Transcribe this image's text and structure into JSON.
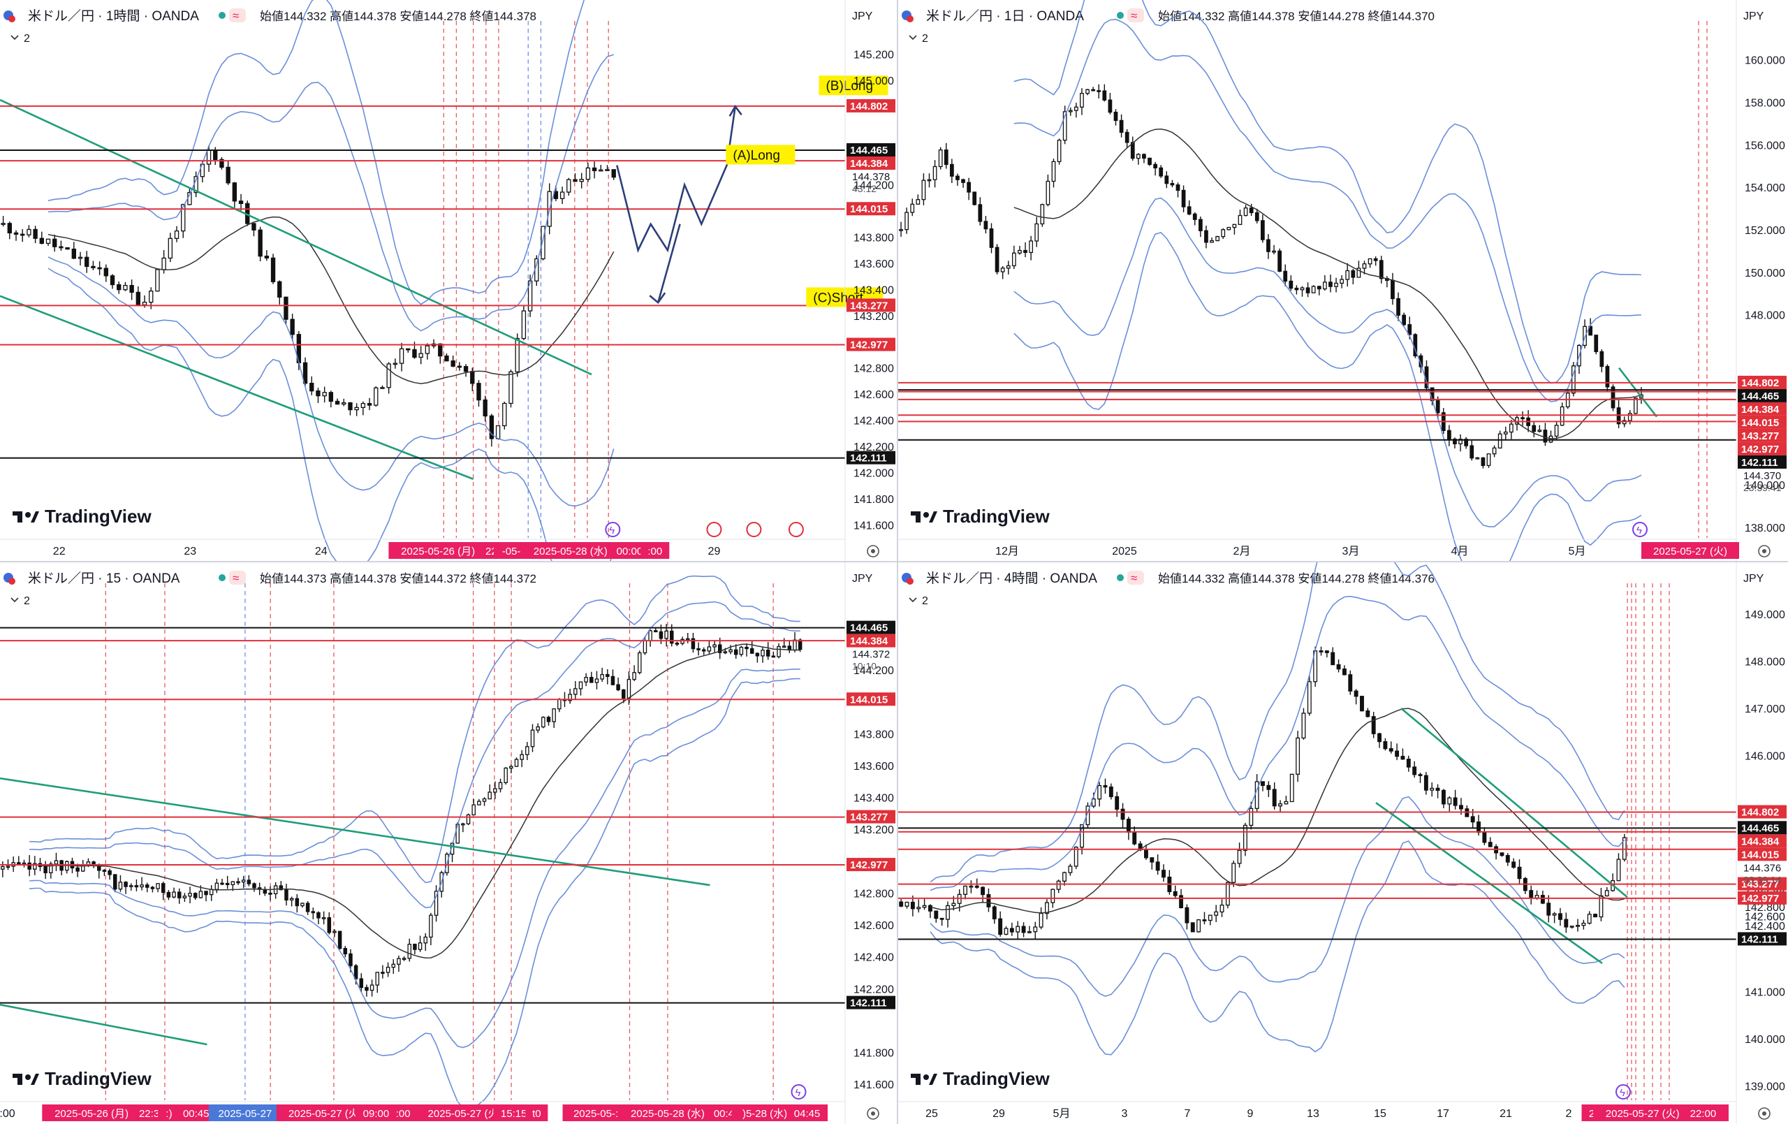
{
  "colors": {
    "red": "#e0303a",
    "black": "#111111",
    "green": "#1f9d7a",
    "band": "#5b83d6",
    "ma": "#333333",
    "candle": "#111111",
    "vline_red": "#e0303a",
    "vline_blue": "#4a78d9",
    "pink": "#e91e63",
    "arrow": "#2d3e7a",
    "yellow": "#fff200",
    "axis_text": "#131722"
  },
  "panels": [
    {
      "id": "h1",
      "title": "米ドル／円 · 1時間 · OANDA",
      "ohlc": {
        "o_label": "始値",
        "o": "144.332",
        "h_label": "高値",
        "h": "144.378",
        "l_label": "安値",
        "l": "144.278",
        "c_label": "終値",
        "c": "144.378"
      },
      "indicator_count": "2",
      "currency": "JPY",
      "brand": "TradingView",
      "chart_data": {
        "type": "candlestick",
        "ylim": [
          141.5,
          145.4
        ],
        "y_ticks": [
          "145.200",
          "145.000",
          "144.200",
          "143.800",
          "143.600",
          "143.400",
          "143.200",
          "142.800",
          "142.600",
          "142.400",
          "142.200",
          "142.000",
          "141.800",
          "141.600"
        ],
        "x_ticks": [
          {
            "label": "22",
            "pos": 0.07
          },
          {
            "label": "23",
            "pos": 0.225
          },
          {
            "label": "24",
            "pos": 0.38
          },
          {
            "label": "29",
            "pos": 0.845
          }
        ],
        "x_highlights": [
          {
            "label": "2025-05-26 (月)　22:00",
            "pos": 0.54
          },
          {
            "label": "-05-",
            "pos": 0.605
          },
          {
            "label": "2025-05-28 (水)",
            "pos": 0.675
          },
          {
            "label": "00:00",
            "pos": 0.745
          },
          {
            "label": ":00",
            "pos": 0.775
          }
        ],
        "levels": [
          {
            "value": "144.802",
            "color": "red"
          },
          {
            "value": "144.465",
            "color": "black"
          },
          {
            "value": "144.384",
            "color": "red"
          },
          {
            "value": "144.015",
            "color": "red"
          },
          {
            "value": "143.277",
            "color": "red"
          },
          {
            "value": "142.977",
            "color": "red"
          },
          {
            "value": "142.111",
            "color": "black"
          }
        ],
        "current_price": "144.378",
        "countdown": "43:12",
        "annotations": [
          {
            "text": "(A)Long"
          },
          {
            "text": "(B)Long"
          },
          {
            "text": "(C)Short"
          }
        ],
        "path_seed": 11,
        "path_points": [
          [
            0,
            143.9
          ],
          [
            0.06,
            143.75
          ],
          [
            0.1,
            143.6
          ],
          [
            0.17,
            143.3
          ],
          [
            0.22,
            144.05
          ],
          [
            0.25,
            144.5
          ],
          [
            0.29,
            143.95
          ],
          [
            0.33,
            143.4
          ],
          [
            0.36,
            142.7
          ],
          [
            0.4,
            142.5
          ],
          [
            0.44,
            142.55
          ],
          [
            0.47,
            142.9
          ],
          [
            0.51,
            142.95
          ],
          [
            0.55,
            142.8
          ],
          [
            0.585,
            142.25
          ],
          [
            0.62,
            143.2
          ],
          [
            0.65,
            144.1
          ],
          [
            0.7,
            144.35
          ],
          [
            0.73,
            144.3
          ]
        ],
        "n_candles": 96,
        "ma_start": 7,
        "vlines": [
          0.525,
          0.54,
          0.56,
          0.575,
          0.59,
          0.625,
          0.64,
          0.68,
          0.695,
          0.72
        ]
      }
    },
    {
      "id": "d1",
      "title": "米ドル／円 · 1日 · OANDA",
      "ohlc": {
        "o_label": "始値",
        "o": "144.332",
        "h_label": "高値",
        "h": "144.378",
        "l_label": "安値",
        "l": "144.278",
        "c_label": "終値",
        "c": "144.370"
      },
      "indicator_count": "2",
      "currency": "JPY",
      "brand": "TradingView",
      "chart_data": {
        "type": "candlestick",
        "ylim": [
          137.5,
          161.5
        ],
        "y_ticks": [
          "160.000",
          "158.000",
          "156.000",
          "154.000",
          "152.000",
          "150.000",
          "148.000",
          "140.000",
          "138.000"
        ],
        "x_ticks": [
          {
            "label": "12月",
            "pos": 0.13
          },
          {
            "label": "2025",
            "pos": 0.27
          },
          {
            "label": "2月",
            "pos": 0.41
          },
          {
            "label": "3月",
            "pos": 0.54
          },
          {
            "label": "4月",
            "pos": 0.67
          },
          {
            "label": "5月",
            "pos": 0.81
          }
        ],
        "x_highlights": [
          {
            "label": "2025-05-27 (火)",
            "pos": 0.945
          }
        ],
        "levels": [
          {
            "value": "144.802",
            "color": "red"
          },
          {
            "value": "144.465",
            "color": "black"
          },
          {
            "value": "144.384",
            "color": "red"
          },
          {
            "value": "144.015",
            "color": "red"
          },
          {
            "value": "143.277",
            "color": "red"
          },
          {
            "value": "142.977",
            "color": "red"
          },
          {
            "value": "142.111",
            "color": "black"
          }
        ],
        "current_price": "144.370",
        "countdown": "23:39:41",
        "annotations": [],
        "path_seed": 23,
        "path_points": [
          [
            0,
            152.0
          ],
          [
            0.05,
            155.5
          ],
          [
            0.09,
            153.5
          ],
          [
            0.12,
            150.0
          ],
          [
            0.16,
            151.5
          ],
          [
            0.2,
            157.5
          ],
          [
            0.24,
            158.8
          ],
          [
            0.28,
            155.5
          ],
          [
            0.33,
            154.0
          ],
          [
            0.37,
            151.5
          ],
          [
            0.42,
            153.0
          ],
          [
            0.47,
            149.0
          ],
          [
            0.52,
            149.5
          ],
          [
            0.57,
            150.5
          ],
          [
            0.61,
            147.0
          ],
          [
            0.65,
            142.5
          ],
          [
            0.7,
            141.0
          ],
          [
            0.74,
            143.5
          ],
          [
            0.78,
            142.0
          ],
          [
            0.82,
            147.5
          ],
          [
            0.86,
            143.0
          ],
          [
            0.89,
            144.4
          ]
        ],
        "n_candles": 132,
        "ma_start": 20,
        "vlines": [
          0.955,
          0.965
        ]
      }
    },
    {
      "id": "m15",
      "title": "米ドル／円 · 15 · OANDA",
      "ohlc": {
        "o_label": "始値",
        "o": "144.373",
        "h_label": "高値",
        "h": "144.378",
        "l_label": "安値",
        "l": "144.372",
        "c_label": "終値",
        "c": "144.372"
      },
      "indicator_count": "2",
      "currency": "JPY",
      "brand": "TradingView",
      "chart_data": {
        "type": "candlestick",
        "ylim": [
          141.5,
          144.7
        ],
        "y_ticks": [
          "144.200",
          "143.800",
          "143.600",
          "143.400",
          "143.200",
          "142.800",
          "142.600",
          "142.400",
          "142.200",
          "141.800",
          "141.600"
        ],
        "x_ticks": [
          {
            "label": "3:00",
            "pos": 0.005
          }
        ],
        "x_highlights": [
          {
            "label": "2025-05-26 (月)　22:30",
            "pos": 0.13
          },
          {
            "label": ":)",
            "pos": 0.2
          },
          {
            "label": "00:45",
            "pos": 0.232
          },
          {
            "label": "2025-05-27",
            "pos": 0.29,
            "blue": true
          },
          {
            "label": "2025-05-27 (火)",
            "pos": 0.385
          },
          {
            "label": "09:00",
            "pos": 0.445
          },
          {
            "label": ":00",
            "pos": 0.477
          },
          {
            "label": "2025-05-27 (火)",
            "pos": 0.55
          },
          {
            "label": "15:15",
            "pos": 0.608
          },
          {
            "label": "t0",
            "pos": 0.635
          },
          {
            "label": "2025-05-:",
            "pos": 0.705
          },
          {
            "label": "2025-05-28 (水)",
            "pos": 0.79
          },
          {
            "label": "00:45",
            "pos": 0.86
          },
          {
            "label": ")5-28 (水)",
            "pos": 0.905
          },
          {
            "label": "04:45",
            "pos": 0.955
          }
        ],
        "levels": [
          {
            "value": "144.465",
            "color": "black"
          },
          {
            "value": "144.384",
            "color": "red"
          },
          {
            "value": "144.015",
            "color": "red"
          },
          {
            "value": "143.277",
            "color": "red"
          },
          {
            "value": "142.977",
            "color": "red"
          },
          {
            "value": "142.111",
            "color": "black"
          }
        ],
        "current_price": "144.372",
        "countdown": "10:10",
        "annotations": [],
        "path_seed": 37,
        "path_points": [
          [
            0,
            142.95
          ],
          [
            0.1,
            142.98
          ],
          [
            0.14,
            142.85
          ],
          [
            0.22,
            142.8
          ],
          [
            0.3,
            142.87
          ],
          [
            0.37,
            142.7
          ],
          [
            0.4,
            142.5
          ],
          [
            0.43,
            142.2
          ],
          [
            0.47,
            142.4
          ],
          [
            0.5,
            142.5
          ],
          [
            0.54,
            143.2
          ],
          [
            0.59,
            143.5
          ],
          [
            0.63,
            143.8
          ],
          [
            0.68,
            144.1
          ],
          [
            0.72,
            144.15
          ],
          [
            0.74,
            144.05
          ],
          [
            0.77,
            144.45
          ],
          [
            0.82,
            144.35
          ],
          [
            0.9,
            144.3
          ],
          [
            0.95,
            144.37
          ]
        ],
        "n_candles": 150,
        "ma_start": 5,
        "vlines": [
          0.125,
          0.195,
          0.29,
          0.32,
          0.395,
          0.56,
          0.585,
          0.605,
          0.745,
          0.79,
          0.915
        ]
      }
    },
    {
      "id": "h4",
      "title": "米ドル／円 · 4時間 · OANDA",
      "ohlc": {
        "o_label": "始値",
        "o": "144.332",
        "h_label": "高値",
        "h": "144.378",
        "l_label": "安値",
        "l": "144.278",
        "c_label": "終値",
        "c": "144.376"
      },
      "indicator_count": "2",
      "currency": "JPY",
      "brand": "TradingView",
      "chart_data": {
        "type": "candlestick",
        "ylim": [
          138.7,
          149.5
        ],
        "y_ticks": [
          "149.000",
          "148.000",
          "147.000",
          "146.000",
          "143.200",
          "142.800",
          "142.600",
          "142.400",
          "141.000",
          "140.000",
          "139.000"
        ],
        "x_ticks": [
          {
            "label": "25",
            "pos": 0.04
          },
          {
            "label": "29",
            "pos": 0.12
          },
          {
            "label": "5月",
            "pos": 0.195
          },
          {
            "label": "3",
            "pos": 0.27
          },
          {
            "label": "7",
            "pos": 0.345
          },
          {
            "label": "9",
            "pos": 0.42
          },
          {
            "label": "13",
            "pos": 0.495
          },
          {
            "label": "15",
            "pos": 0.575
          },
          {
            "label": "17",
            "pos": 0.65
          },
          {
            "label": "21",
            "pos": 0.725
          },
          {
            "label": "2",
            "pos": 0.8
          }
        ],
        "x_highlights": [
          {
            "label": "2025-",
            "pos": 0.84
          },
          {
            "label": "2025-05-27 (火)　22:00",
            "pos": 0.91
          }
        ],
        "levels": [
          {
            "value": "144.802",
            "color": "red"
          },
          {
            "value": "144.465",
            "color": "black"
          },
          {
            "value": "144.384",
            "color": "red"
          },
          {
            "value": "144.015",
            "color": "red"
          },
          {
            "value": "143.277",
            "color": "red"
          },
          {
            "value": "142.977",
            "color": "red"
          },
          {
            "value": "142.111",
            "color": "black"
          }
        ],
        "current_price": "144.376",
        "countdown": "03:39:14",
        "annotations": [],
        "path_seed": 51,
        "path_points": [
          [
            0,
            142.9
          ],
          [
            0.05,
            142.6
          ],
          [
            0.09,
            143.4
          ],
          [
            0.12,
            142.2
          ],
          [
            0.16,
            142.3
          ],
          [
            0.2,
            143.5
          ],
          [
            0.24,
            145.5
          ],
          [
            0.27,
            144.5
          ],
          [
            0.32,
            143.3
          ],
          [
            0.35,
            142.3
          ],
          [
            0.39,
            143.0
          ],
          [
            0.43,
            145.5
          ],
          [
            0.46,
            144.8
          ],
          [
            0.5,
            148.3
          ],
          [
            0.53,
            147.8
          ],
          [
            0.57,
            146.5
          ],
          [
            0.62,
            145.5
          ],
          [
            0.67,
            144.8
          ],
          [
            0.72,
            143.8
          ],
          [
            0.77,
            142.8
          ],
          [
            0.8,
            142.3
          ],
          [
            0.83,
            142.6
          ],
          [
            0.85,
            143.3
          ],
          [
            0.87,
            144.35
          ]
        ],
        "n_candles": 125,
        "ma_start": 5,
        "vlines": [
          0.87,
          0.875,
          0.88,
          0.89,
          0.9,
          0.91,
          0.92
        ]
      }
    }
  ]
}
